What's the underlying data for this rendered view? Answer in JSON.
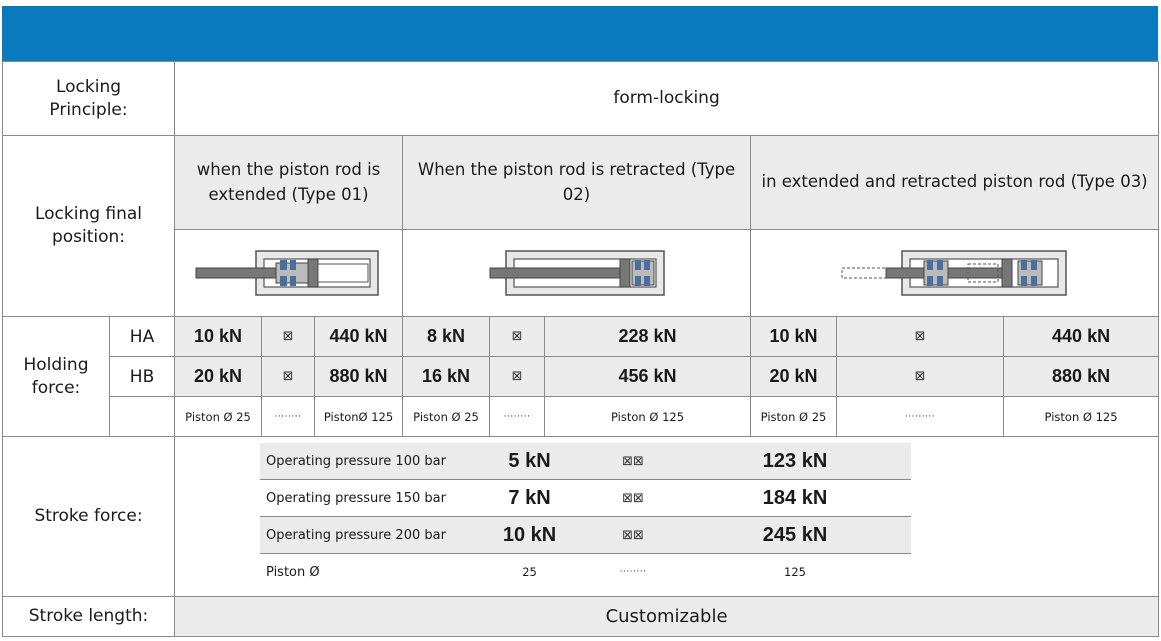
{
  "rows": {
    "locking_principle": {
      "label": "Locking Principle:",
      "value": "form-locking"
    },
    "locking_final_position": {
      "label": "Locking final position:",
      "types": [
        "when the piston rod is extended (Type 01)",
        "When the piston rod is retracted (Type 02)",
        "in extended and retracted piston rod (Type 03)"
      ]
    },
    "holding_force": {
      "label": "Holding force:",
      "HA": {
        "grade": "HA",
        "t1": [
          "10 kN",
          "⊠",
          "440 kN"
        ],
        "t2": [
          "8 kN",
          "⊠",
          "228 kN"
        ],
        "t3": [
          "10 kN",
          "⊠",
          "440 kN"
        ]
      },
      "HB": {
        "grade": "HB",
        "t1": [
          "20 kN",
          "⊠",
          "880 kN"
        ],
        "t2": [
          "16 kN",
          "⊠",
          "456 kN"
        ],
        "t3": [
          "20 kN",
          "⊠",
          "880 kN"
        ]
      },
      "piston": {
        "t1": [
          "Piston Ø 25",
          "········",
          "PistonØ 125"
        ],
        "t2": [
          "Piston Ø 25",
          "········",
          "Piston Ø 125"
        ],
        "t3": [
          "Piston Ø 25",
          "·········",
          "Piston Ø 125"
        ]
      }
    },
    "stroke_force": {
      "label": "Stroke force:",
      "pressures": [
        {
          "label": "Operating pressure 100 bar",
          "min": "5 kN",
          "sep": "⊠⊠",
          "max": "123 kN"
        },
        {
          "label": "Operating pressure 150 bar",
          "min": "7 kN",
          "sep": "⊠⊠",
          "max": "184 kN"
        },
        {
          "label": "Operating pressure 200 bar",
          "min": "10 kN",
          "sep": "⊠⊠",
          "max": "245 kN"
        }
      ],
      "piston": {
        "label": "Piston Ø",
        "min": "25",
        "sep": "········",
        "max": "125"
      }
    },
    "stroke_length": {
      "label": "Stroke length:",
      "value": "Customizable"
    }
  },
  "colors": {
    "banner": "#0a7abf",
    "shade": "#ebebeb",
    "seal": "#4a6f9e",
    "body": "#e8e8e8",
    "rod": "#777777"
  }
}
